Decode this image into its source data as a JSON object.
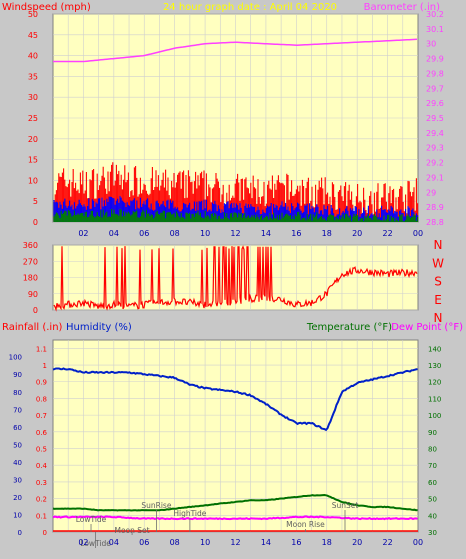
{
  "colors": {
    "background": "#c8c8c8",
    "plot_bg": "#ffffc0",
    "grid": "#cfcfcf",
    "wind_peak": "#ff0000",
    "wind_avg": "#0000ff",
    "wind_low": "#008000",
    "barometer": "#ff40ff",
    "direction": "#ff0000",
    "humidity": "#0020c8",
    "temperature": "#007000",
    "dewpoint": "#ff00ff",
    "rainfall": "#ff0000"
  },
  "chart_data": [
    {
      "type": "line",
      "title": "24 hour graph date : April 04 2020",
      "ylabel_left": "Windspeed (mph)",
      "ylabel_right": "Barometer (.in)",
      "x_ticks": [
        "02",
        "04",
        "06",
        "08",
        "10",
        "12",
        "14",
        "16",
        "18",
        "20",
        "22",
        "00"
      ],
      "left_ticks": [
        "0",
        "5",
        "10",
        "15",
        "20",
        "25",
        "30",
        "35",
        "40",
        "45",
        "50"
      ],
      "right_ticks": [
        "28.8",
        "28.9",
        "29",
        "29.1",
        "29.2",
        "29.3",
        "29.4",
        "29.5",
        "29.6",
        "29.7",
        "29.8",
        "29.9",
        "30",
        "30.1",
        "30.2"
      ],
      "ylim_left": [
        0,
        50
      ],
      "ylim_right": [
        28.8,
        30.2
      ],
      "series": [
        {
          "name": "Windspeed (mph)",
          "x": [
            0,
            1,
            2,
            3,
            4,
            5,
            6,
            7,
            8,
            9,
            10,
            11,
            12,
            13,
            14,
            15,
            16,
            17,
            18,
            19,
            20,
            21,
            22,
            23,
            24
          ],
          "values": [
            8,
            9,
            8,
            9,
            10,
            9,
            9,
            8,
            8,
            8,
            8,
            7,
            7,
            7,
            6,
            7,
            7,
            6,
            6,
            5,
            5,
            5,
            5,
            5,
            6
          ]
        },
        {
          "name": "Barometer (.in)",
          "x": [
            0,
            2,
            4,
            6,
            8,
            10,
            12,
            14,
            16,
            18,
            20,
            22,
            24
          ],
          "values": [
            29.88,
            29.88,
            29.9,
            29.92,
            29.97,
            30.0,
            30.01,
            30.0,
            29.99,
            30.0,
            30.01,
            30.02,
            30.03
          ]
        }
      ]
    },
    {
      "type": "line",
      "right_labels": [
        "N",
        "W",
        "S",
        "E",
        "N"
      ],
      "left_ticks": [
        "0",
        "90",
        "180",
        "270",
        "360"
      ],
      "ylim": [
        0,
        360
      ],
      "series": [
        {
          "name": "Wind direction",
          "x": [
            0,
            1,
            2,
            3,
            4,
            5,
            6,
            7,
            8,
            9,
            10,
            11,
            12,
            13,
            14,
            15,
            16,
            17,
            18,
            19,
            20,
            21,
            22,
            23,
            24
          ],
          "values": [
            20,
            30,
            40,
            20,
            30,
            20,
            30,
            40,
            50,
            40,
            30,
            40,
            50,
            60,
            70,
            60,
            30,
            40,
            90,
            200,
            220,
            210,
            200,
            205,
            210
          ]
        }
      ]
    },
    {
      "type": "line",
      "labels_top": [
        "Rainfall (.in)",
        "Humidity (%)",
        "Temperature (°F)",
        "Dew Point (°F)"
      ],
      "left_ticks_pct": [
        "0",
        "10",
        "20",
        "30",
        "40",
        "50",
        "60",
        "70",
        "80",
        "90",
        "100"
      ],
      "left_ticks_rain": [
        "0",
        "0.1",
        "0.2",
        "0.3",
        "0.4",
        "0.5",
        "0.6",
        "0.7",
        "0.8",
        "0.9",
        "1",
        "1.1"
      ],
      "right_ticks": [
        "30",
        "40",
        "50",
        "60",
        "70",
        "80",
        "90",
        "100",
        "110",
        "120",
        "130",
        "140"
      ],
      "ylim_rain": [
        0,
        1.15
      ],
      "ylim_right": [
        30,
        145
      ],
      "annotations": [
        {
          "text": "LowTide",
          "x": 2.5
        },
        {
          "text": "SunRise",
          "x": 6.8
        },
        {
          "text": "Moon Set",
          "x": 5.2
        },
        {
          "text": "HighTide",
          "x": 9.0
        },
        {
          "text": "Moon Rise",
          "x": 16.6
        },
        {
          "text": "SunSet",
          "x": 19.2
        },
        {
          "text": "LowTide",
          "x": 2.8
        }
      ],
      "series": [
        {
          "name": "Humidity (%)",
          "x": [
            0,
            1,
            2,
            3,
            4,
            5,
            6,
            7,
            8,
            9,
            10,
            11,
            12,
            13,
            14,
            15,
            16,
            17,
            18,
            19,
            20,
            21,
            22,
            23,
            24
          ],
          "values": [
            93,
            93,
            91,
            91,
            91,
            91,
            90,
            89,
            88,
            84,
            82,
            81,
            80,
            78,
            73,
            67,
            62,
            62,
            58,
            80,
            85,
            87,
            89,
            91,
            93
          ]
        },
        {
          "name": "Temperature (°F)",
          "x": [
            0,
            1,
            2,
            3,
            4,
            5,
            6,
            7,
            8,
            9,
            10,
            11,
            12,
            13,
            14,
            15,
            16,
            17,
            18,
            19,
            20,
            21,
            22,
            23,
            24
          ],
          "values": [
            44,
            44,
            44,
            43,
            43,
            43,
            43,
            43,
            44,
            45,
            46,
            47,
            48,
            49,
            49,
            50,
            51,
            52,
            52,
            48,
            46,
            45,
            45,
            44,
            43
          ]
        },
        {
          "name": "Dew Point (°F)",
          "x": [
            0,
            2,
            4,
            6,
            8,
            10,
            12,
            14,
            16,
            18,
            20,
            22,
            24
          ],
          "values": [
            39,
            39,
            39,
            38,
            38,
            38,
            38,
            38,
            39,
            39,
            38,
            38,
            38
          ]
        },
        {
          "name": "Rainfall (.in)",
          "x": [
            0,
            24
          ],
          "values": [
            0,
            0
          ]
        }
      ]
    }
  ]
}
